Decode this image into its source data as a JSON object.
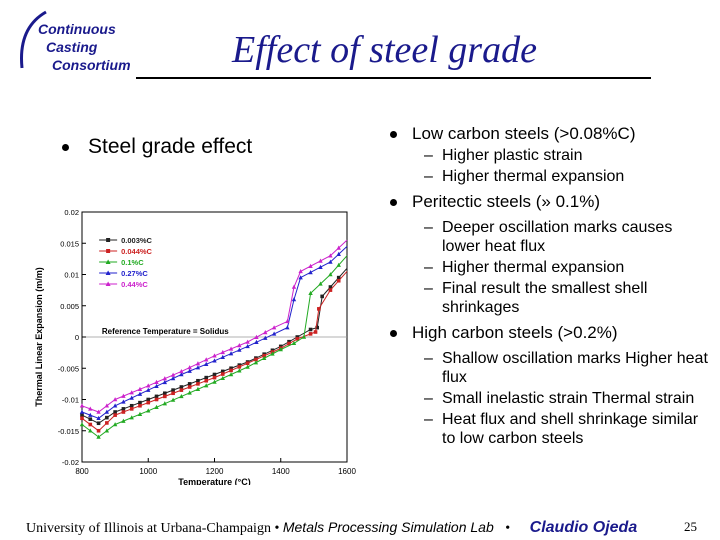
{
  "logo": {
    "lines": [
      "Continuous",
      "Casting",
      "Consortium"
    ]
  },
  "title": "Effect of steel grade",
  "left_bullet": "Steel grade effect",
  "right_bullets": [
    {
      "text": "Low carbon steels (>0.08%C)",
      "subs": [
        "Higher plastic strain",
        "Higher thermal expansion"
      ]
    },
    {
      "text": "Peritectic steels (» 0.1%)",
      "subs": [
        "Deeper oscillation marks causes lower heat flux",
        "Higher thermal expansion",
        "Final result the smallest shell shrinkages"
      ]
    },
    {
      "text": "High carbon steels (>0.2%)",
      "subs": [
        "Shallow oscillation marks Higher heat flux",
        "Small inelastic strain Thermal strain",
        "Heat flux and shell shrinkage similar to low carbon steels"
      ]
    }
  ],
  "footer": {
    "university": "University of Illinois at Urbana-Champaign",
    "separator": "•",
    "lab": "Metals Processing Simulation Lab",
    "author": "Claudio Ojeda",
    "page": "25"
  },
  "colors": {
    "title": "#1a1a8c",
    "logo": "#1a1a8c"
  },
  "chart_data": {
    "type": "line",
    "xlabel": "Temperature (°C)",
    "ylabel": "Thermal Linear Expansion (m/m)",
    "xlim": [
      800,
      1600
    ],
    "ylim": [
      -0.02,
      0.02
    ],
    "x_ticks": [
      800,
      1000,
      1200,
      1400,
      1600
    ],
    "y_ticks": [
      -0.02,
      -0.015,
      -0.01,
      -0.005,
      0,
      0.005,
      0.01,
      0.015,
      0.02
    ],
    "y_tick_labels": [
      "-0.02",
      "-0.015",
      "-0.01",
      "-0.005",
      "0",
      "0.005",
      "0.01",
      "0.015",
      "0.02"
    ],
    "annotation": "Reference Temperature = Solidus",
    "legend_position": "top-left",
    "series": [
      {
        "name": "0.003%C",
        "color": "#222222",
        "marker": "square",
        "x": [
          800,
          850,
          900,
          1000,
          1100,
          1200,
          1300,
          1400,
          1450,
          1490,
          1510,
          1525,
          1550,
          1600
        ],
        "y": [
          -0.0125,
          -0.0138,
          -0.012,
          -0.01,
          -0.008,
          -0.006,
          -0.004,
          -0.0015,
          0.0,
          0.0012,
          0.0015,
          0.0065,
          0.008,
          0.011
        ]
      },
      {
        "name": "0.044%C",
        "color": "#cc2222",
        "marker": "square",
        "x": [
          800,
          850,
          900,
          1000,
          1100,
          1200,
          1300,
          1400,
          1450,
          1490,
          1505,
          1515,
          1550,
          1600
        ],
        "y": [
          -0.013,
          -0.015,
          -0.0125,
          -0.0105,
          -0.0085,
          -0.0065,
          -0.0042,
          -0.0018,
          -0.0003,
          0.0005,
          0.0008,
          0.0045,
          0.0075,
          0.0105
        ]
      },
      {
        "name": "0.1%C",
        "color": "#22aa22",
        "marker": "triangle",
        "x": [
          800,
          850,
          900,
          1000,
          1100,
          1200,
          1300,
          1400,
          1440,
          1470,
          1490,
          1550,
          1600
        ],
        "y": [
          -0.014,
          -0.016,
          -0.014,
          -0.0118,
          -0.0095,
          -0.0072,
          -0.0048,
          -0.002,
          -0.001,
          0.0,
          0.007,
          0.01,
          0.013
        ]
      },
      {
        "name": "0.27%C",
        "color": "#2222cc",
        "marker": "triangle",
        "x": [
          800,
          850,
          900,
          1000,
          1100,
          1200,
          1300,
          1380,
          1420,
          1440,
          1460,
          1550,
          1600
        ],
        "y": [
          -0.012,
          -0.013,
          -0.011,
          -0.0085,
          -0.006,
          -0.0038,
          -0.0015,
          0.0005,
          0.0015,
          0.006,
          0.0095,
          0.012,
          0.0145
        ]
      },
      {
        "name": "0.44%C",
        "color": "#cc22cc",
        "marker": "triangle",
        "x": [
          800,
          850,
          900,
          1000,
          1100,
          1200,
          1300,
          1380,
          1420,
          1440,
          1460,
          1550,
          1600
        ],
        "y": [
          -0.011,
          -0.012,
          -0.01,
          -0.0078,
          -0.0055,
          -0.003,
          -0.0008,
          0.0015,
          0.0025,
          0.008,
          0.0105,
          0.013,
          0.0155
        ]
      }
    ]
  }
}
